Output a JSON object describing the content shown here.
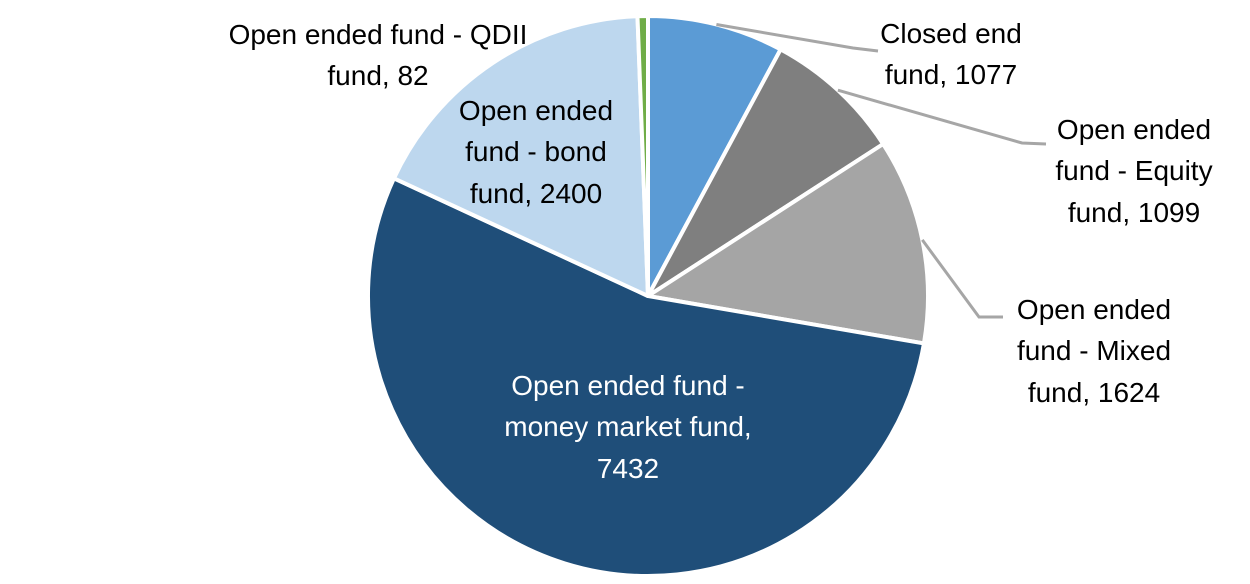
{
  "chart_data": {
    "type": "pie",
    "legend": "none",
    "start_angle_deg": 0,
    "direction": "clockwise",
    "slice_border_color": "#FFFFFF",
    "leader_line_color": "#A6A6A6",
    "label_color": "#000000",
    "inside_label_color": "#FFFFFF",
    "slices": [
      {
        "name": "Closed end fund",
        "value": 1077,
        "color": "#5B9BD5",
        "label_lines": [
          "Closed end",
          "fund, 1077"
        ],
        "label_placement": "outside-right"
      },
      {
        "name": "Open ended fund - Equity fund",
        "value": 1099,
        "color": "#7F7F7F",
        "label_lines": [
          "Open ended",
          "fund - Equity",
          "fund, 1099"
        ],
        "label_placement": "outside-right"
      },
      {
        "name": "Open ended fund - Mixed fund",
        "value": 1624,
        "color": "#A5A5A5",
        "label_lines": [
          "Open ended",
          "fund - Mixed",
          "fund, 1624"
        ],
        "label_placement": "outside-right"
      },
      {
        "name": "Open ended fund - money market fund",
        "value": 7432,
        "color": "#1F4E79",
        "label_lines": [
          "Open ended fund -",
          "money market fund,",
          "7432"
        ],
        "label_placement": "inside"
      },
      {
        "name": "Open ended fund - bond fund",
        "value": 2400,
        "color": "#BDD7EE",
        "label_lines": [
          "Open ended",
          "fund - bond",
          "fund, 2400"
        ],
        "label_placement": "on-slice-top-left"
      },
      {
        "name": "Open ended fund - QDII fund",
        "value": 82,
        "color": "#70AD47",
        "label_lines": [
          "Open ended fund - QDII",
          "fund, 82"
        ],
        "label_placement": "outside-top-left"
      }
    ]
  }
}
